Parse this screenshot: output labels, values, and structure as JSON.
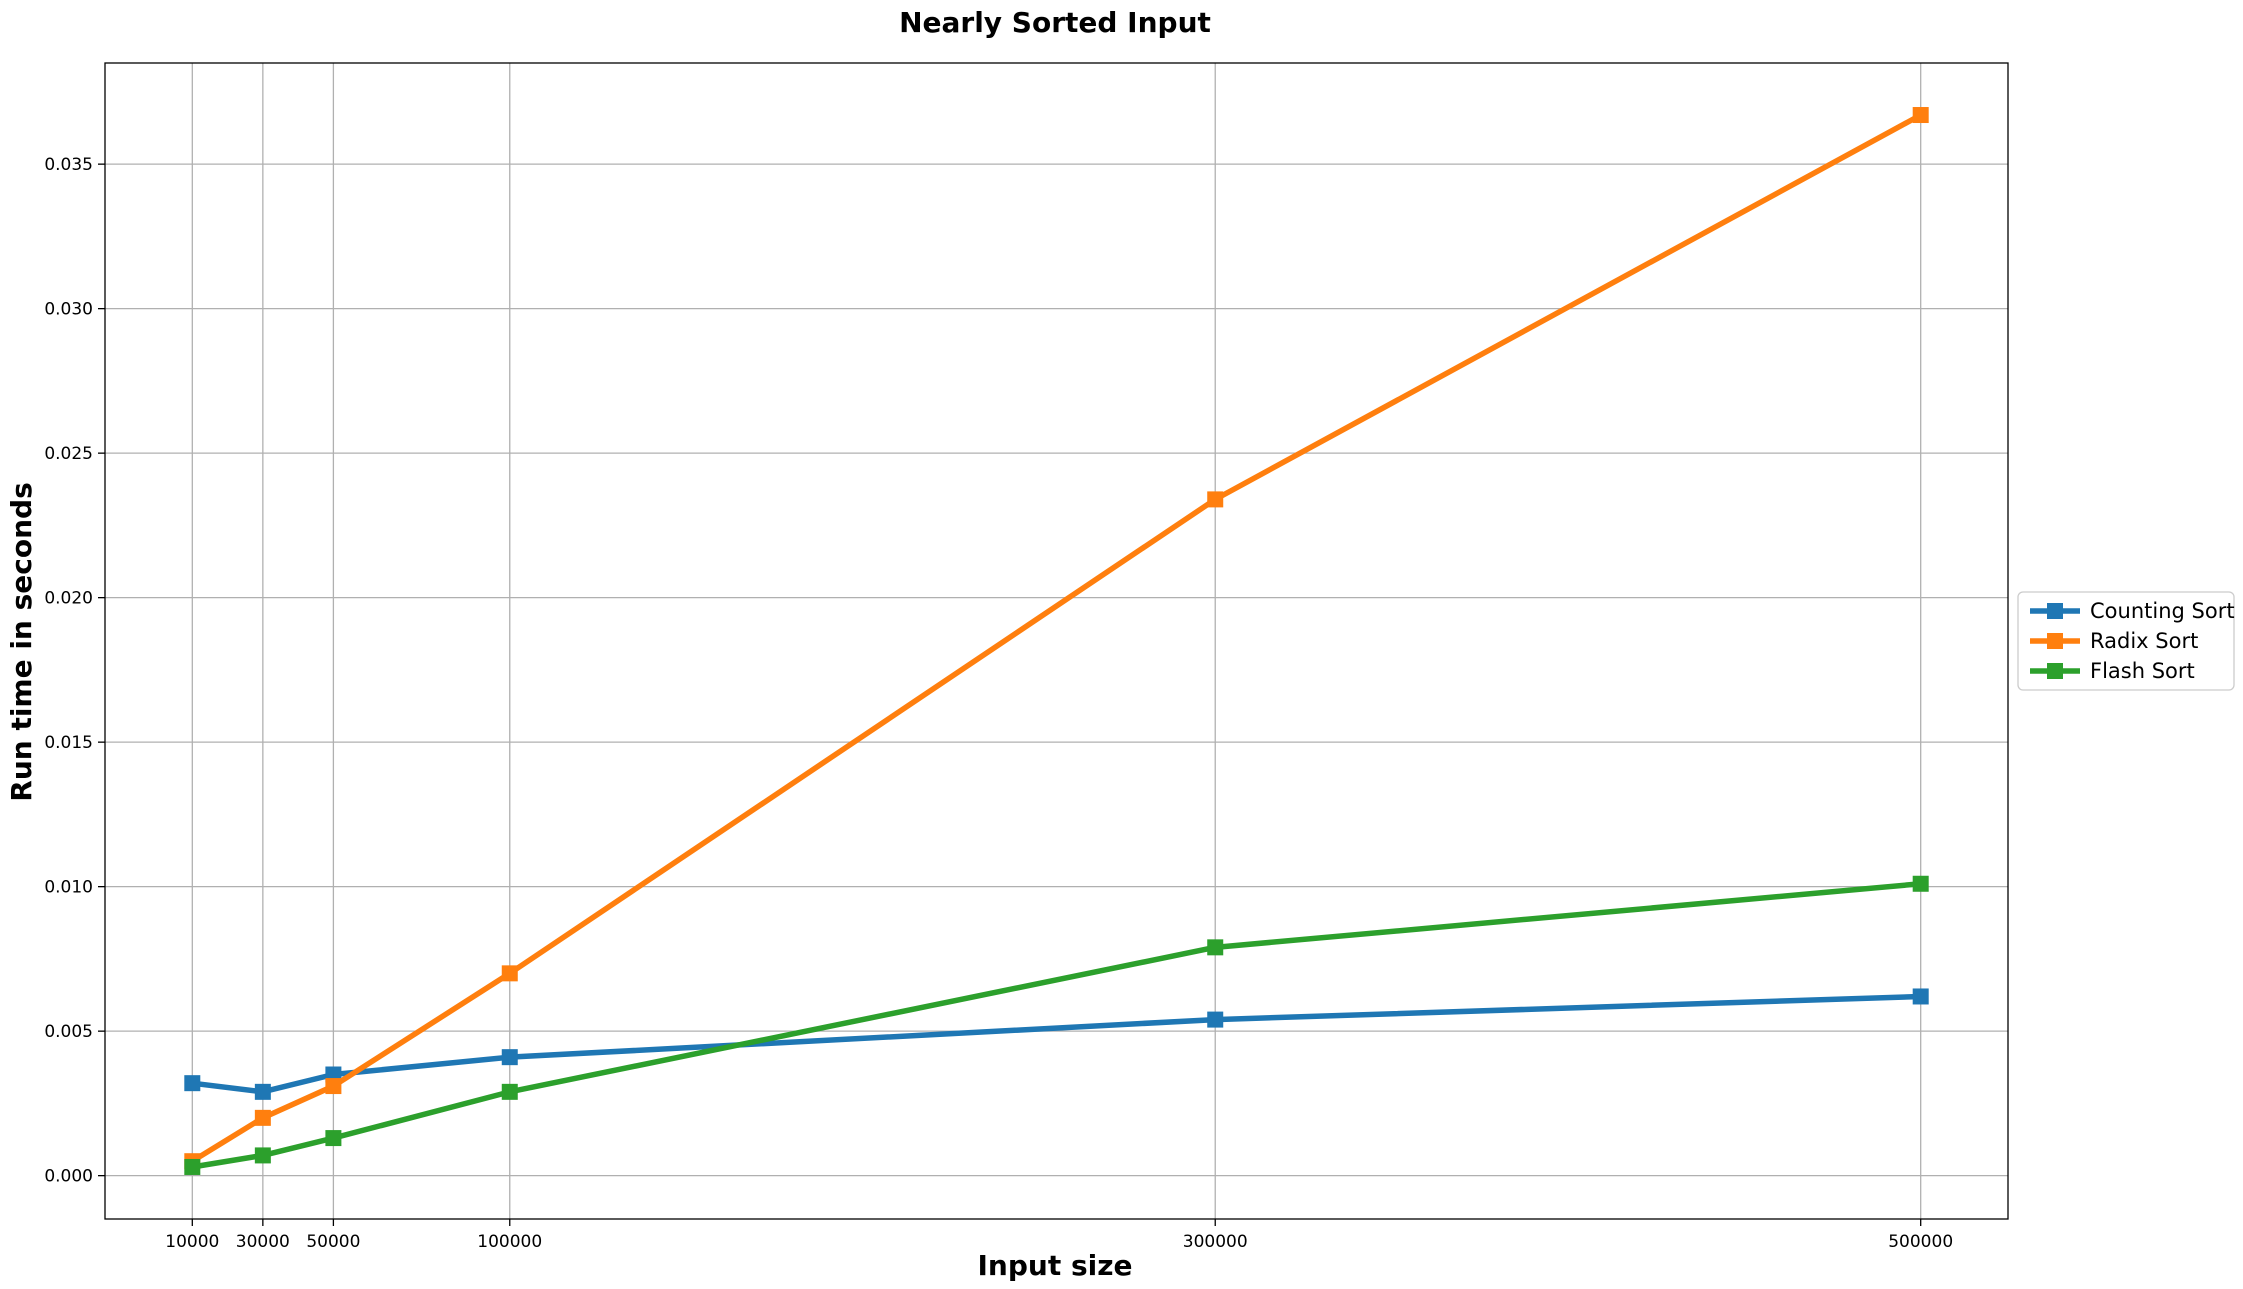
{
  "chart_data": {
    "type": "line",
    "title": "Nearly Sorted Input",
    "xlabel": "Input size",
    "ylabel": "Run time in seconds",
    "x": [
      10000,
      30000,
      50000,
      100000,
      300000,
      500000
    ],
    "x_ticks": [
      "10000",
      "30000",
      "50000",
      "100000",
      "300000",
      "500000"
    ],
    "y_ticks": [
      "0.000",
      "0.005",
      "0.010",
      "0.015",
      "0.020",
      "0.025",
      "0.030",
      "0.035"
    ],
    "xlim": [
      -14750,
      524750
    ],
    "ylim": [
      -0.0015,
      0.0385
    ],
    "grid": true,
    "legend_position": "center-right outside",
    "series": [
      {
        "name": "Counting Sort",
        "color": "#1f77b4",
        "marker": "square",
        "values": [
          0.0032,
          0.0029,
          0.0035,
          0.0041,
          0.0054,
          0.0062
        ]
      },
      {
        "name": "Radix Sort",
        "color": "#ff7f0e",
        "marker": "square",
        "values": [
          0.0005,
          0.002,
          0.0031,
          0.007,
          0.0234,
          0.0367
        ]
      },
      {
        "name": "Flash Sort",
        "color": "#2ca02c",
        "marker": "square",
        "values": [
          0.0003,
          0.0007,
          0.0013,
          0.0029,
          0.0079,
          0.0101
        ]
      }
    ]
  }
}
